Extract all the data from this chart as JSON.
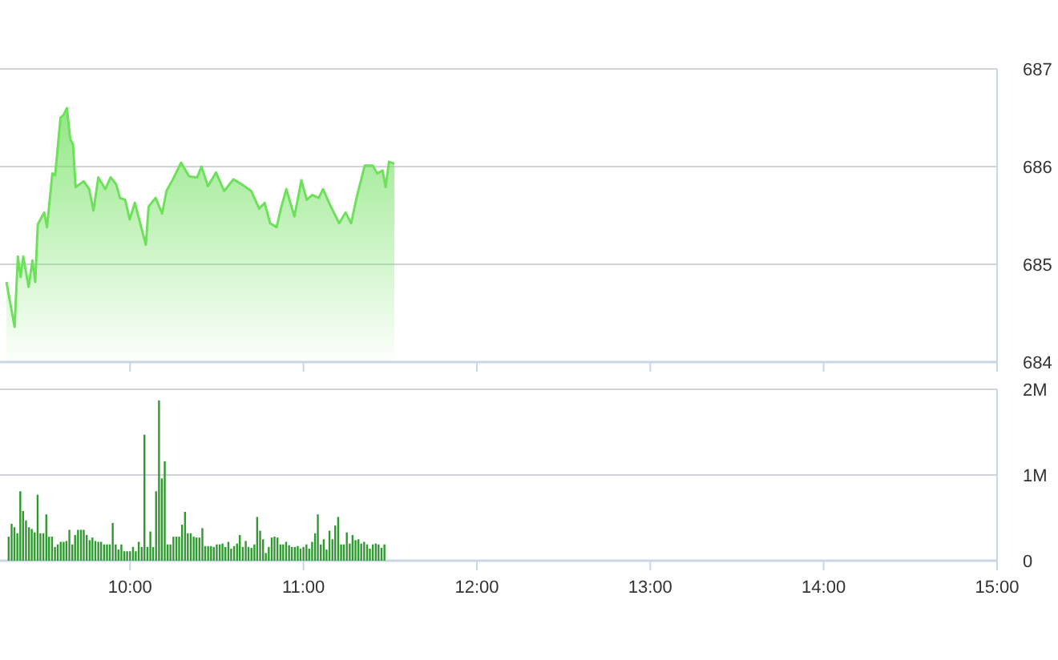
{
  "chart_data": [
    {
      "type": "area",
      "series": [
        {
          "color": "#6ee05c",
          "x": [
            9.287,
            9.334,
            9.353,
            9.369,
            9.384,
            9.415,
            9.437,
            9.453,
            9.468,
            9.505,
            9.521,
            9.552,
            9.568,
            9.599,
            9.617,
            9.636,
            9.655,
            9.671,
            9.686,
            9.733,
            9.764,
            9.789,
            9.817,
            9.857,
            9.888,
            9.92,
            9.942,
            9.972,
            9.998,
            10.028,
            10.06,
            10.091,
            10.107,
            10.147,
            10.185,
            10.21,
            10.247,
            10.294,
            10.341,
            10.387,
            10.412,
            10.449,
            10.496,
            10.543,
            10.596,
            10.643,
            10.699,
            10.745,
            10.776,
            10.808,
            10.845,
            10.87,
            10.901,
            10.948,
            10.988,
            11.019,
            11.051,
            11.088,
            11.113,
            11.15,
            11.206,
            11.243,
            11.275,
            11.306,
            11.353,
            11.4,
            11.425,
            11.456,
            11.474,
            11.493,
            11.524
          ],
          "values": [
            684.82,
            684.36,
            685.08,
            684.87,
            685.08,
            684.77,
            685.04,
            684.82,
            685.41,
            685.53,
            685.38,
            685.93,
            685.91,
            686.5,
            686.53,
            686.6,
            686.28,
            686.23,
            685.79,
            685.85,
            685.77,
            685.55,
            685.89,
            685.77,
            685.89,
            685.82,
            685.68,
            685.66,
            685.46,
            685.63,
            685.41,
            685.2,
            685.59,
            685.68,
            685.52,
            685.75,
            685.87,
            686.04,
            685.9,
            685.89,
            686.0,
            685.8,
            685.94,
            685.75,
            685.87,
            685.82,
            685.75,
            685.57,
            685.63,
            685.42,
            685.38,
            685.57,
            685.77,
            685.49,
            685.86,
            685.66,
            685.71,
            685.68,
            685.77,
            685.62,
            685.42,
            685.53,
            685.42,
            685.68,
            686.01,
            686.01,
            685.93,
            685.96,
            685.79,
            686.05,
            686.03
          ]
        }
      ],
      "xlim": [
        9.25,
        15
      ],
      "xticks": [
        10,
        11,
        12,
        13,
        14,
        15
      ],
      "ylim": [
        684,
        687
      ],
      "yticks": [
        684,
        685,
        686,
        687
      ],
      "grid": "y",
      "tick_labels": "y"
    },
    {
      "type": "bar",
      "series": [
        {
          "color": "#2f9a2f",
          "x": [
            9.3,
            9.317,
            9.333,
            9.35,
            9.367,
            9.383,
            9.4,
            9.417,
            9.433,
            9.45,
            9.467,
            9.483,
            9.5,
            9.517,
            9.533,
            9.55,
            9.567,
            9.583,
            9.6,
            9.617,
            9.633,
            9.65,
            9.667,
            9.683,
            9.7,
            9.717,
            9.733,
            9.75,
            9.767,
            9.783,
            9.8,
            9.817,
            9.833,
            9.85,
            9.867,
            9.883,
            9.9,
            9.917,
            9.933,
            9.95,
            9.967,
            9.983,
            10.0,
            10.017,
            10.033,
            10.05,
            10.067,
            10.083,
            10.1,
            10.117,
            10.133,
            10.15,
            10.167,
            10.183,
            10.2,
            10.217,
            10.233,
            10.25,
            10.267,
            10.283,
            10.3,
            10.317,
            10.333,
            10.35,
            10.367,
            10.383,
            10.4,
            10.417,
            10.433,
            10.45,
            10.467,
            10.483,
            10.5,
            10.517,
            10.533,
            10.55,
            10.567,
            10.583,
            10.6,
            10.617,
            10.633,
            10.65,
            10.667,
            10.683,
            10.7,
            10.717,
            10.733,
            10.75,
            10.767,
            10.783,
            10.8,
            10.817,
            10.833,
            10.85,
            10.867,
            10.883,
            10.9,
            10.917,
            10.933,
            10.95,
            10.967,
            10.983,
            11.0,
            11.017,
            11.033,
            11.05,
            11.067,
            11.083,
            11.1,
            11.117,
            11.133,
            11.15,
            11.167,
            11.183,
            11.2,
            11.217,
            11.233,
            11.25,
            11.267,
            11.283,
            11.3,
            11.317,
            11.333,
            11.35,
            11.367,
            11.383,
            11.4,
            11.417,
            11.433,
            11.45,
            11.467
          ],
          "values": [
            280000,
            430000,
            390000,
            320000,
            810000,
            580000,
            470000,
            390000,
            370000,
            330000,
            770000,
            320000,
            320000,
            540000,
            280000,
            280000,
            160000,
            190000,
            220000,
            220000,
            230000,
            360000,
            190000,
            300000,
            360000,
            360000,
            360000,
            300000,
            240000,
            270000,
            230000,
            220000,
            220000,
            190000,
            190000,
            190000,
            440000,
            190000,
            130000,
            190000,
            110000,
            110000,
            110000,
            160000,
            110000,
            220000,
            160000,
            1470000,
            160000,
            340000,
            160000,
            810000,
            1870000,
            960000,
            1160000,
            190000,
            190000,
            280000,
            280000,
            280000,
            420000,
            570000,
            320000,
            320000,
            280000,
            270000,
            270000,
            380000,
            170000,
            170000,
            170000,
            160000,
            190000,
            190000,
            200000,
            160000,
            220000,
            140000,
            170000,
            200000,
            300000,
            160000,
            230000,
            160000,
            150000,
            190000,
            510000,
            350000,
            250000,
            90000,
            160000,
            270000,
            280000,
            270000,
            190000,
            190000,
            220000,
            180000,
            160000,
            160000,
            170000,
            140000,
            160000,
            190000,
            140000,
            220000,
            320000,
            540000,
            190000,
            250000,
            130000,
            350000,
            250000,
            410000,
            510000,
            190000,
            190000,
            330000,
            200000,
            300000,
            240000,
            250000,
            200000,
            220000,
            190000,
            140000,
            190000,
            200000,
            190000,
            150000,
            190000
          ]
        }
      ],
      "xlim": [
        9.25,
        15
      ],
      "xticks": [
        {
          "value": 10,
          "label": "10:00"
        },
        {
          "value": 11,
          "label": "11:00"
        },
        {
          "value": 12,
          "label": "12:00"
        },
        {
          "value": 13,
          "label": "13:00"
        },
        {
          "value": 14,
          "label": "14:00"
        },
        {
          "value": 15,
          "label": "15:00"
        }
      ],
      "ylim": [
        0,
        2000000
      ],
      "yticks": [
        0,
        {
          "value": 1000000,
          "label": "1M"
        },
        {
          "value": 2000000,
          "label": "2M"
        }
      ],
      "grid": "y"
    }
  ]
}
